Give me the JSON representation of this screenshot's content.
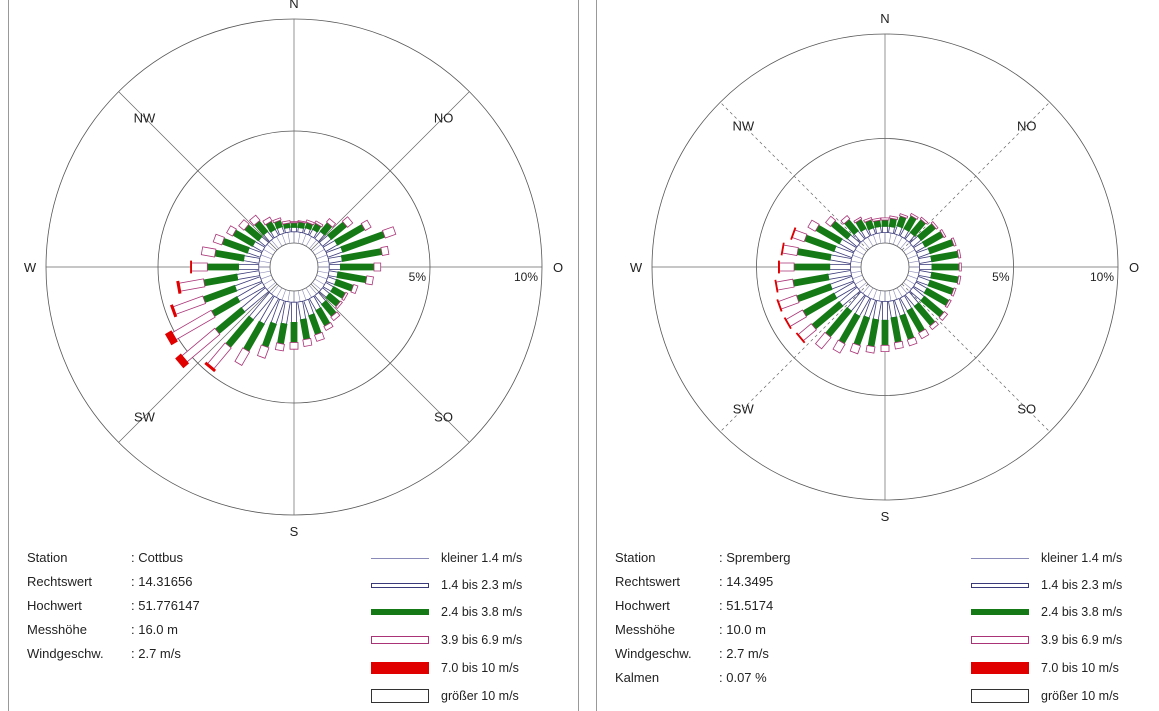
{
  "directions": [
    "N",
    "NO",
    "O",
    "SO",
    "S",
    "SW",
    "W",
    "NW"
  ],
  "ring_labels": [
    "5%",
    "10%"
  ],
  "legend": [
    {
      "label": "kleiner 1.4 m/s",
      "fill": "#ffffff",
      "stroke": "#8a8ab8",
      "thickness": 1
    },
    {
      "label": "1.4 bis 2.3 m/s",
      "fill": "#ffffff",
      "stroke": "#3a3a7a",
      "thickness": 5
    },
    {
      "label": "2.4 bis 3.8 m/s",
      "fill": "#157a15",
      "stroke": "#157a15",
      "thickness": 6
    },
    {
      "label": "3.9 bis 6.9 m/s",
      "fill": "#ffffff",
      "stroke": "#aa3377",
      "thickness": 8
    },
    {
      "label": "7.0 bis 10 m/s",
      "fill": "#e00000",
      "stroke": "#e00000",
      "thickness": 12
    },
    {
      "label": "größer 10 m/s",
      "fill": "#ffffff",
      "stroke": "#333333",
      "thickness": 14
    }
  ],
  "panels": [
    {
      "info": [
        {
          "key": "Station",
          "value": ": Cottbus"
        },
        {
          "key": "Rechtswert",
          "value": ": 14.31656"
        },
        {
          "key": "Hochwert",
          "value": ": 51.776147"
        },
        {
          "key": "Messhöhe",
          "value": ": 16.0 m"
        },
        {
          "key": "Windgeschw.",
          "value": ": 2.7 m/s"
        }
      ]
    },
    {
      "info": [
        {
          "key": "Station",
          "value": ": Spremberg"
        },
        {
          "key": "Rechtswert",
          "value": ": 14.3495"
        },
        {
          "key": "Hochwert",
          "value": ": 51.5174"
        },
        {
          "key": "Messhöhe",
          "value": ": 10.0 m"
        },
        {
          "key": "Windgeschw.",
          "value": ": 2.7 m/s"
        },
        {
          "key": "Kalmen",
          "value": ": 0.07 %"
        }
      ]
    }
  ],
  "chart_data": [
    {
      "type": "wind-rose",
      "station": "Cottbus",
      "rlim": [
        0,
        10
      ],
      "rings": [
        5,
        10
      ],
      "speed_classes": [
        "kleiner 1.4 m/s",
        "1.4 bis 2.3 m/s",
        "2.4 bis 3.8 m/s",
        "3.9 bis 6.9 m/s",
        "7.0 bis 10 m/s",
        "größer 10 m/s"
      ],
      "sector_deg": 10,
      "sectors": [
        {
          "dir": 0,
          "v": [
            0.5,
            0.2,
            0.2,
            0.05,
            0,
            0
          ]
        },
        {
          "dir": 10,
          "v": [
            0.5,
            0.2,
            0.25,
            0.05,
            0,
            0
          ]
        },
        {
          "dir": 20,
          "v": [
            0.5,
            0.25,
            0.25,
            0.1,
            0,
            0
          ]
        },
        {
          "dir": 30,
          "v": [
            0.5,
            0.3,
            0.3,
            0.1,
            0,
            0
          ]
        },
        {
          "dir": 40,
          "v": [
            0.5,
            0.4,
            0.5,
            0.2,
            0,
            0
          ]
        },
        {
          "dir": 50,
          "v": [
            0.5,
            0.5,
            0.9,
            0.3,
            0,
            0
          ]
        },
        {
          "dir": 60,
          "v": [
            0.5,
            0.6,
            1.4,
            0.3,
            0,
            0
          ]
        },
        {
          "dir": 70,
          "v": [
            0.5,
            0.7,
            2.0,
            0.5,
            0,
            0
          ]
        },
        {
          "dir": 80,
          "v": [
            0.5,
            0.6,
            1.8,
            0.3,
            0,
            0
          ]
        },
        {
          "dir": 90,
          "v": [
            0.5,
            0.5,
            1.5,
            0.3,
            0,
            0
          ]
        },
        {
          "dir": 100,
          "v": [
            0.5,
            0.4,
            1.3,
            0.3,
            0,
            0
          ]
        },
        {
          "dir": 110,
          "v": [
            0.5,
            0.4,
            0.8,
            0.2,
            0,
            0
          ]
        },
        {
          "dir": 120,
          "v": [
            0.5,
            0.4,
            0.6,
            0.1,
            0,
            0
          ]
        },
        {
          "dir": 130,
          "v": [
            0.5,
            0.4,
            0.6,
            0.1,
            0,
            0
          ]
        },
        {
          "dir": 140,
          "v": [
            0.5,
            0.5,
            0.7,
            0.2,
            0,
            0
          ]
        },
        {
          "dir": 150,
          "v": [
            0.5,
            0.6,
            0.8,
            0.2,
            0,
            0
          ]
        },
        {
          "dir": 160,
          "v": [
            0.5,
            0.7,
            0.9,
            0.3,
            0,
            0
          ]
        },
        {
          "dir": 170,
          "v": [
            0.5,
            0.8,
            0.9,
            0.3,
            0,
            0
          ]
        },
        {
          "dir": 180,
          "v": [
            0.5,
            0.9,
            0.9,
            0.3,
            0,
            0
          ]
        },
        {
          "dir": 190,
          "v": [
            0.5,
            1.0,
            0.9,
            0.3,
            0,
            0
          ]
        },
        {
          "dir": 200,
          "v": [
            0.5,
            1.1,
            1.1,
            0.5,
            0,
            0
          ]
        },
        {
          "dir": 210,
          "v": [
            0.5,
            1.3,
            1.4,
            0.7,
            0,
            0
          ]
        },
        {
          "dir": 220,
          "v": [
            0.5,
            1.4,
            1.6,
            1.2,
            0.1,
            0
          ]
        },
        {
          "dir": 230,
          "v": [
            0.5,
            1.4,
            1.5,
            1.9,
            0.3,
            0
          ]
        },
        {
          "dir": 240,
          "v": [
            0.5,
            1.3,
            1.3,
            2.0,
            0.3,
            0
          ]
        },
        {
          "dir": 250,
          "v": [
            0.5,
            1.2,
            1.5,
            1.4,
            0.1,
            0
          ]
        },
        {
          "dir": 260,
          "v": [
            0.5,
            1.0,
            1.5,
            1.1,
            0.1,
            0
          ]
        },
        {
          "dir": 270,
          "v": [
            0.5,
            0.9,
            1.4,
            0.7,
            0.05,
            0
          ]
        },
        {
          "dir": 280,
          "v": [
            0.5,
            0.7,
            1.3,
            0.6,
            0,
            0
          ]
        },
        {
          "dir": 290,
          "v": [
            0.5,
            0.6,
            1.2,
            0.4,
            0,
            0
          ]
        },
        {
          "dir": 300,
          "v": [
            0.5,
            0.5,
            1.0,
            0.3,
            0,
            0
          ]
        },
        {
          "dir": 310,
          "v": [
            0.5,
            0.4,
            0.8,
            0.3,
            0,
            0
          ]
        },
        {
          "dir": 320,
          "v": [
            0.5,
            0.4,
            0.6,
            0.3,
            0,
            0
          ]
        },
        {
          "dir": 330,
          "v": [
            0.5,
            0.3,
            0.4,
            0.2,
            0,
            0
          ]
        },
        {
          "dir": 340,
          "v": [
            0.5,
            0.3,
            0.3,
            0.1,
            0,
            0
          ]
        },
        {
          "dir": 350,
          "v": [
            0.5,
            0.2,
            0.2,
            0.1,
            0,
            0
          ]
        }
      ]
    },
    {
      "type": "wind-rose",
      "station": "Spremberg",
      "rlim": [
        0,
        10
      ],
      "rings": [
        5,
        10
      ],
      "speed_classes": [
        "kleiner 1.4 m/s",
        "1.4 bis 2.3 m/s",
        "2.4 bis 3.8 m/s",
        "3.9 bis 6.9 m/s",
        "7.0 bis 10 m/s",
        "größer 10 m/s"
      ],
      "sector_deg": 10,
      "sectors": [
        {
          "dir": 0,
          "v": [
            0.5,
            0.3,
            0.3,
            0.1,
            0,
            0
          ]
        },
        {
          "dir": 10,
          "v": [
            0.5,
            0.3,
            0.4,
            0.1,
            0,
            0
          ]
        },
        {
          "dir": 20,
          "v": [
            0.5,
            0.4,
            0.5,
            0.1,
            0,
            0
          ]
        },
        {
          "dir": 30,
          "v": [
            0.5,
            0.4,
            0.7,
            0.1,
            0,
            0
          ]
        },
        {
          "dir": 40,
          "v": [
            0.5,
            0.4,
            0.8,
            0.1,
            0,
            0
          ]
        },
        {
          "dir": 50,
          "v": [
            0.5,
            0.5,
            0.9,
            0.1,
            0,
            0
          ]
        },
        {
          "dir": 60,
          "v": [
            0.5,
            0.5,
            1.0,
            0.1,
            0,
            0
          ]
        },
        {
          "dir": 70,
          "v": [
            0.5,
            0.6,
            1.2,
            0.1,
            0,
            0
          ]
        },
        {
          "dir": 80,
          "v": [
            0.5,
            0.6,
            1.3,
            0.1,
            0,
            0
          ]
        },
        {
          "dir": 90,
          "v": [
            0.5,
            0.6,
            1.3,
            0.1,
            0,
            0
          ]
        },
        {
          "dir": 100,
          "v": [
            0.5,
            0.6,
            1.3,
            0.1,
            0,
            0
          ]
        },
        {
          "dir": 110,
          "v": [
            0.5,
            0.6,
            1.2,
            0.1,
            0,
            0
          ]
        },
        {
          "dir": 120,
          "v": [
            0.5,
            0.6,
            1.2,
            0.1,
            0,
            0
          ]
        },
        {
          "dir": 130,
          "v": [
            0.5,
            0.7,
            1.2,
            0.2,
            0,
            0
          ]
        },
        {
          "dir": 140,
          "v": [
            0.5,
            0.7,
            1.2,
            0.2,
            0,
            0
          ]
        },
        {
          "dir": 150,
          "v": [
            0.5,
            0.7,
            1.2,
            0.3,
            0,
            0
          ]
        },
        {
          "dir": 160,
          "v": [
            0.5,
            0.8,
            1.2,
            0.3,
            0,
            0
          ]
        },
        {
          "dir": 170,
          "v": [
            0.5,
            0.8,
            1.2,
            0.3,
            0,
            0
          ]
        },
        {
          "dir": 180,
          "v": [
            0.5,
            0.9,
            1.2,
            0.3,
            0,
            0
          ]
        },
        {
          "dir": 190,
          "v": [
            0.5,
            0.9,
            1.3,
            0.3,
            0,
            0
          ]
        },
        {
          "dir": 200,
          "v": [
            0.5,
            0.9,
            1.4,
            0.4,
            0,
            0
          ]
        },
        {
          "dir": 210,
          "v": [
            0.5,
            1.0,
            1.5,
            0.5,
            0,
            0
          ]
        },
        {
          "dir": 220,
          "v": [
            0.5,
            1.0,
            1.6,
            0.7,
            0,
            0
          ]
        },
        {
          "dir": 230,
          "v": [
            0.5,
            1.1,
            1.7,
            0.8,
            0.05,
            0
          ]
        },
        {
          "dir": 240,
          "v": [
            0.5,
            1.1,
            1.7,
            0.9,
            0.05,
            0
          ]
        },
        {
          "dir": 250,
          "v": [
            0.5,
            1.1,
            1.7,
            0.9,
            0.05,
            0
          ]
        },
        {
          "dir": 260,
          "v": [
            0.5,
            1.1,
            1.7,
            0.8,
            0.05,
            0
          ]
        },
        {
          "dir": 270,
          "v": [
            0.5,
            1.0,
            1.7,
            0.7,
            0.05,
            0
          ]
        },
        {
          "dir": 280,
          "v": [
            0.5,
            1.0,
            1.6,
            0.7,
            0.05,
            0
          ]
        },
        {
          "dir": 290,
          "v": [
            0.5,
            0.9,
            1.5,
            0.6,
            0.05,
            0
          ]
        },
        {
          "dir": 300,
          "v": [
            0.5,
            0.8,
            1.3,
            0.4,
            0,
            0
          ]
        },
        {
          "dir": 310,
          "v": [
            0.5,
            0.6,
            1.0,
            0.3,
            0,
            0
          ]
        },
        {
          "dir": 320,
          "v": [
            0.5,
            0.5,
            0.7,
            0.2,
            0,
            0
          ]
        },
        {
          "dir": 330,
          "v": [
            0.5,
            0.4,
            0.5,
            0.1,
            0,
            0
          ]
        },
        {
          "dir": 340,
          "v": [
            0.5,
            0.3,
            0.4,
            0.1,
            0,
            0
          ]
        },
        {
          "dir": 350,
          "v": [
            0.5,
            0.3,
            0.3,
            0.1,
            0,
            0
          ]
        }
      ]
    }
  ]
}
